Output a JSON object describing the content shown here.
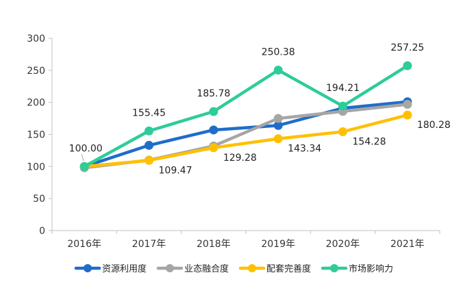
{
  "chart_data": {
    "type": "line",
    "categories": [
      "2016年",
      "2017年",
      "2018年",
      "2019年",
      "2020年",
      "2021年"
    ],
    "ylim": [
      0,
      300
    ],
    "yticks": [
      0,
      50,
      100,
      150,
      200,
      250,
      300
    ],
    "grid": false,
    "legend_position": "bottom",
    "series": [
      {
        "name": "资源利用度",
        "color": "#1F6DC9",
        "values": [
          100,
          133,
          157,
          164,
          191,
          201
        ],
        "labels": []
      },
      {
        "name": "业态融合度",
        "color": "#A6A6A6",
        "values": [
          98,
          110,
          132,
          175,
          186,
          197
        ],
        "labels": []
      },
      {
        "name": "配套完善度",
        "color": "#FFC000",
        "values": [
          100,
          109.47,
          129.28,
          143.34,
          154.28,
          180.28
        ],
        "labels": [
          "",
          "109.47",
          "129.28",
          "143.34",
          "154.28",
          "180.28"
        ]
      },
      {
        "name": "市场影响力",
        "color": "#2ECC9A",
        "values": [
          100,
          155.45,
          185.78,
          250.38,
          194.21,
          257.25
        ],
        "labels": [
          "100.00",
          "155.45",
          "185.78",
          "250.38",
          "194.21",
          "257.25"
        ]
      }
    ]
  }
}
